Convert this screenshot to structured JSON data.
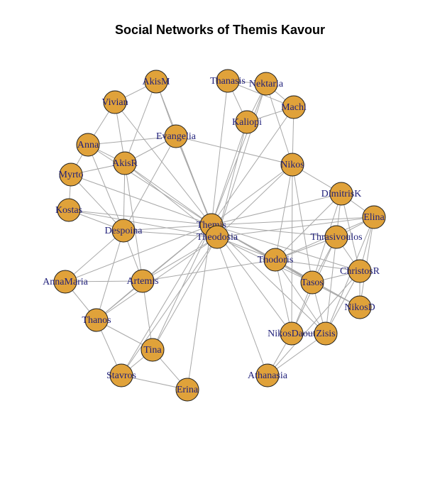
{
  "title": "Social Networks of Themis Kavour",
  "colors": {
    "node_fill": "#e0a23a",
    "node_stroke": "#1a1a1a",
    "edge": "#a8a8a8",
    "label": "#1f1f7a",
    "background": "#ffffff"
  },
  "graph": {
    "nodes": [
      {
        "id": "AkisM",
        "label": "AkisM"
      },
      {
        "id": "Vivian",
        "label": "Vivian"
      },
      {
        "id": "Thanasis",
        "label": "Thanasis"
      },
      {
        "id": "Nektaria",
        "label": "Nektaria"
      },
      {
        "id": "Machi",
        "label": "Machi"
      },
      {
        "id": "Kaliopi",
        "label": "Kaliopi"
      },
      {
        "id": "Evangelia",
        "label": "Evangelia"
      },
      {
        "id": "Anna",
        "label": "Anna"
      },
      {
        "id": "AkisR",
        "label": "AkisR"
      },
      {
        "id": "Nikos",
        "label": "Nikos"
      },
      {
        "id": "Myrto",
        "label": "Myrto"
      },
      {
        "id": "DimitrisK",
        "label": "DimitrisK"
      },
      {
        "id": "Kostas",
        "label": "Kostas"
      },
      {
        "id": "Elina",
        "label": "Elina"
      },
      {
        "id": "Despoina",
        "label": "Despoina"
      },
      {
        "id": "Themis",
        "label": "Themis"
      },
      {
        "id": "Theodosia",
        "label": "Theodosia"
      },
      {
        "id": "Thrasivoulos",
        "label": "Thrasivoulos"
      },
      {
        "id": "Thodoris",
        "label": "Thodoris"
      },
      {
        "id": "ChristosR",
        "label": "ChristosR"
      },
      {
        "id": "AnnaMaria",
        "label": "AnnaMaria"
      },
      {
        "id": "Artemis",
        "label": "Artemis"
      },
      {
        "id": "Tasos",
        "label": "Tasos"
      },
      {
        "id": "NikosD",
        "label": "NikosD"
      },
      {
        "id": "Thanos",
        "label": "Thanos"
      },
      {
        "id": "NikosDaout",
        "label": "NikosDaout"
      },
      {
        "id": "Zisis",
        "label": "Zisis"
      },
      {
        "id": "Tina",
        "label": "Tina"
      },
      {
        "id": "Stavros",
        "label": "Stavros"
      },
      {
        "id": "Athanasia",
        "label": "Athanasia"
      },
      {
        "id": "Erina",
        "label": "Erina"
      }
    ],
    "edges": [
      [
        "Themis",
        "AkisM"
      ],
      [
        "Themis",
        "Vivian"
      ],
      [
        "Themis",
        "Thanasis"
      ],
      [
        "Themis",
        "Nektaria"
      ],
      [
        "Themis",
        "Machi"
      ],
      [
        "Themis",
        "Kaliopi"
      ],
      [
        "Themis",
        "Evangelia"
      ],
      [
        "Themis",
        "Anna"
      ],
      [
        "Themis",
        "AkisR"
      ],
      [
        "Themis",
        "Nikos"
      ],
      [
        "Themis",
        "Myrto"
      ],
      [
        "Themis",
        "DimitrisK"
      ],
      [
        "Themis",
        "Kostas"
      ],
      [
        "Themis",
        "Elina"
      ],
      [
        "Themis",
        "Despoina"
      ],
      [
        "Themis",
        "Thrasivoulos"
      ],
      [
        "Themis",
        "Thodoris"
      ],
      [
        "Themis",
        "ChristosR"
      ],
      [
        "Themis",
        "AnnaMaria"
      ],
      [
        "Themis",
        "Artemis"
      ],
      [
        "Themis",
        "Tasos"
      ],
      [
        "Themis",
        "NikosD"
      ],
      [
        "Themis",
        "Thanos"
      ],
      [
        "Themis",
        "NikosDaout"
      ],
      [
        "Themis",
        "Zisis"
      ],
      [
        "Themis",
        "Tina"
      ],
      [
        "Themis",
        "Stavros"
      ],
      [
        "Themis",
        "Athanasia"
      ],
      [
        "Themis",
        "Erina"
      ],
      [
        "Theodosia",
        "Evangelia"
      ],
      [
        "Theodosia",
        "Nektaria"
      ],
      [
        "Theodosia",
        "Kaliopi"
      ],
      [
        "Theodosia",
        "Nikos"
      ],
      [
        "Theodosia",
        "Despoina"
      ],
      [
        "Theodosia",
        "Artemis"
      ],
      [
        "Theodosia",
        "Tina"
      ],
      [
        "Theodosia",
        "Stavros"
      ],
      [
        "Theodosia",
        "Thodoris"
      ],
      [
        "Theodosia",
        "Tasos"
      ],
      [
        "Theodosia",
        "Thanos"
      ],
      [
        "Theodosia",
        "Elina"
      ],
      [
        "Theodosia",
        "AkisR"
      ],
      [
        "Theodosia",
        "Kostas"
      ],
      [
        "AkisM",
        "Vivian"
      ],
      [
        "AkisM",
        "AkisR"
      ],
      [
        "AkisM",
        "Evangelia"
      ],
      [
        "Vivian",
        "Anna"
      ],
      [
        "Vivian",
        "AkisR"
      ],
      [
        "Anna",
        "AkisR"
      ],
      [
        "Anna",
        "Myrto"
      ],
      [
        "Anna",
        "Evangelia"
      ],
      [
        "Anna",
        "Despoina"
      ],
      [
        "Myrto",
        "AkisR"
      ],
      [
        "Myrto",
        "Kostas"
      ],
      [
        "Myrto",
        "Despoina"
      ],
      [
        "AkisR",
        "Evangelia"
      ],
      [
        "AkisR",
        "Despoina"
      ],
      [
        "AkisR",
        "Artemis"
      ],
      [
        "Kostas",
        "Despoina"
      ],
      [
        "Evangelia",
        "Nikos"
      ],
      [
        "Evangelia",
        "Despoina"
      ],
      [
        "Thanasis",
        "Nektaria"
      ],
      [
        "Thanasis",
        "Kaliopi"
      ],
      [
        "Thanasis",
        "Machi"
      ],
      [
        "Nektaria",
        "Kaliopi"
      ],
      [
        "Nektaria",
        "Machi"
      ],
      [
        "Nektaria",
        "Nikos"
      ],
      [
        "Machi",
        "Kaliopi"
      ],
      [
        "Machi",
        "Nikos"
      ],
      [
        "Nikos",
        "DimitrisK"
      ],
      [
        "Nikos",
        "Thodoris"
      ],
      [
        "Nikos",
        "NikosDaout"
      ],
      [
        "Nikos",
        "Tasos"
      ],
      [
        "DimitrisK",
        "Elina"
      ],
      [
        "DimitrisK",
        "Thrasivoulos"
      ],
      [
        "DimitrisK",
        "ChristosR"
      ],
      [
        "DimitrisK",
        "Thodoris"
      ],
      [
        "DimitrisK",
        "Tasos"
      ],
      [
        "Elina",
        "Thrasivoulos"
      ],
      [
        "Elina",
        "ChristosR"
      ],
      [
        "Elina",
        "Thodoris"
      ],
      [
        "Elina",
        "NikosD"
      ],
      [
        "Elina",
        "Zisis"
      ],
      [
        "Thrasivoulos",
        "ChristosR"
      ],
      [
        "Thrasivoulos",
        "Thodoris"
      ],
      [
        "Thrasivoulos",
        "Tasos"
      ],
      [
        "Thrasivoulos",
        "NikosDaout"
      ],
      [
        "Thrasivoulos",
        "Zisis"
      ],
      [
        "Thodoris",
        "ChristosR"
      ],
      [
        "Thodoris",
        "Tasos"
      ],
      [
        "Thodoris",
        "NikosDaout"
      ],
      [
        "Thodoris",
        "Zisis"
      ],
      [
        "Thodoris",
        "NikosD"
      ],
      [
        "ChristosR",
        "Tasos"
      ],
      [
        "ChristosR",
        "NikosD"
      ],
      [
        "ChristosR",
        "Zisis"
      ],
      [
        "ChristosR",
        "Athanasia"
      ],
      [
        "Tasos",
        "NikosD"
      ],
      [
        "Tasos",
        "NikosDaout"
      ],
      [
        "Tasos",
        "Zisis"
      ],
      [
        "NikosDaout",
        "Zisis"
      ],
      [
        "NikosDaout",
        "Athanasia"
      ],
      [
        "Despoina",
        "AnnaMaria"
      ],
      [
        "Despoina",
        "Artemis"
      ],
      [
        "Despoina",
        "Thanos"
      ],
      [
        "AnnaMaria",
        "Artemis"
      ],
      [
        "AnnaMaria",
        "Thanos"
      ],
      [
        "Artemis",
        "Thanos"
      ],
      [
        "Artemis",
        "Tina"
      ],
      [
        "Artemis",
        "Thodoris"
      ],
      [
        "Thanos",
        "Tina"
      ],
      [
        "Thanos",
        "Stavros"
      ],
      [
        "Tina",
        "Stavros"
      ],
      [
        "Tina",
        "Erina"
      ],
      [
        "Stavros",
        "Erina"
      ],
      [
        "Zisis",
        "Athanasia"
      ]
    ]
  }
}
